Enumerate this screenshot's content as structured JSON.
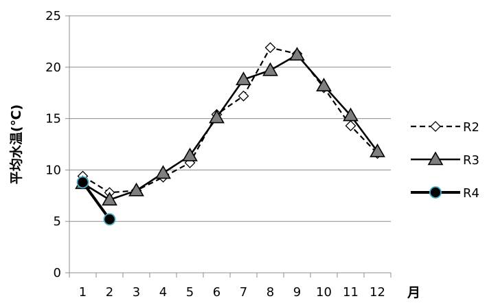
{
  "chart_data": {
    "type": "line",
    "title": "",
    "ylabel": "平均水温(℃)",
    "xlabel": "月",
    "x": [
      1,
      2,
      3,
      4,
      5,
      6,
      7,
      8,
      9,
      10,
      11,
      12
    ],
    "x_tick_labels": [
      "1",
      "2",
      "3",
      "4",
      "5",
      "6",
      "7",
      "8",
      "9",
      "10",
      "11",
      "12"
    ],
    "ylim": [
      0,
      25
    ],
    "y_ticks": [
      0,
      5,
      10,
      15,
      20,
      25
    ],
    "y_tick_labels": [
      "0",
      "5",
      "10",
      "15",
      "20",
      "25"
    ],
    "grid": true,
    "legend_position": "right",
    "series": [
      {
        "name": "R2",
        "color": "#000000",
        "line_style": "dashed",
        "marker": "diamond-open",
        "x": [
          1,
          2,
          3,
          4,
          5,
          6,
          7,
          8,
          9,
          10,
          11,
          12
        ],
        "values": [
          9.4,
          7.8,
          8.0,
          9.3,
          10.7,
          15.4,
          17.2,
          21.9,
          21.3,
          18.0,
          14.3,
          11.6
        ]
      },
      {
        "name": "R3",
        "color": "#000000",
        "line_style": "solid",
        "marker": "triangle-gray",
        "x": [
          1,
          2,
          3,
          4,
          5,
          6,
          7,
          8,
          9,
          10,
          11,
          12
        ],
        "values": [
          8.7,
          7.1,
          8.0,
          9.7,
          11.4,
          15.1,
          18.8,
          19.7,
          21.2,
          18.2,
          15.3,
          11.8
        ]
      },
      {
        "name": "R4",
        "color": "#000000",
        "line_style": "solid-bold",
        "marker": "circle-black-cyan-edge",
        "x": [
          1,
          2
        ],
        "values": [
          8.8,
          5.2
        ]
      }
    ]
  }
}
